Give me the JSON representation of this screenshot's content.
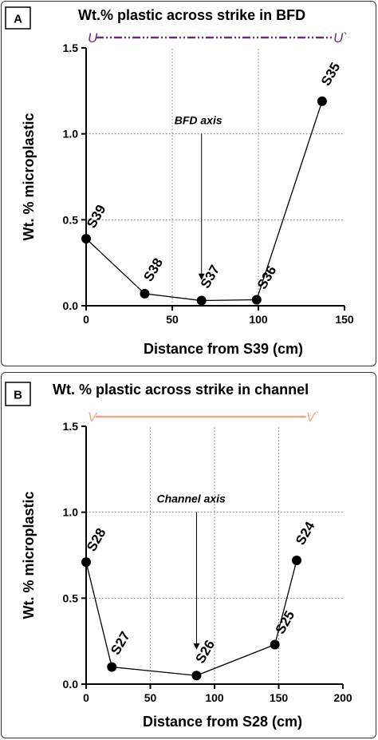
{
  "chart_data": [
    {
      "type": "line",
      "panel": "A",
      "title": "Wt.% plastic across strike in BFD",
      "xlabel": "Distance from S39 (cm)",
      "ylabel": "Wt. % microplastic",
      "xlim": [
        0,
        150
      ],
      "ylim": [
        0,
        1.5
      ],
      "xticks": [
        0,
        50,
        100,
        150
      ],
      "yticks": [
        0.0,
        0.5,
        1.0,
        1.5
      ],
      "ytick_labels": [
        "0.0",
        "0.5",
        "1.0",
        "1.5"
      ],
      "grid": "dotted vertical at 50 and 100, dotted horizontal at 0.5 and 1.0",
      "points": [
        {
          "label": "S39",
          "x": 0,
          "y": 0.39
        },
        {
          "label": "S38",
          "x": 34,
          "y": 0.07
        },
        {
          "label": "S37",
          "x": 67,
          "y": 0.03
        },
        {
          "label": "S36",
          "x": 99,
          "y": 0.035
        },
        {
          "label": "S35",
          "x": 137,
          "y": 1.19
        }
      ],
      "annotation": {
        "text": "BFD axis",
        "x": 67,
        "y_text": 1.0,
        "y_arrow_end": 0.15
      },
      "section_line": {
        "start_label": "U",
        "end_label": "U`",
        "color": "#6b2c7a",
        "x_start": 0,
        "x_end": 150,
        "y": 1.5
      }
    },
    {
      "type": "line",
      "panel": "B",
      "title": "Wt. % plastic across strike in channel",
      "xlabel": "Distance from S28 (cm)",
      "ylabel": "Wt. % microplastic",
      "xlim": [
        0,
        200
      ],
      "ylim": [
        0,
        1.5
      ],
      "xticks": [
        0,
        50,
        100,
        150,
        200
      ],
      "yticks": [
        0.0,
        0.5,
        1.0,
        1.5
      ],
      "ytick_labels": [
        "0.0",
        "0.5",
        "1.0",
        "1.5"
      ],
      "grid": "dotted vertical at 50, 100 and 150, dotted horizontal at 0.5 and 1.0",
      "points": [
        {
          "label": "S28",
          "x": 0,
          "y": 0.71
        },
        {
          "label": "S27",
          "x": 20,
          "y": 0.1
        },
        {
          "label": "S26",
          "x": 86,
          "y": 0.05
        },
        {
          "label": "S25",
          "x": 147,
          "y": 0.23
        },
        {
          "label": "S24",
          "x": 164,
          "y": 0.72
        }
      ],
      "annotation": {
        "text": "Channel axis",
        "x": 86,
        "y_text": 1.0,
        "y_arrow_end": 0.2
      },
      "section_line": {
        "start_label": "V",
        "end_label": "V`",
        "color": "#f0a890",
        "x_start": 0,
        "x_end": 180,
        "y": 1.5
      }
    }
  ]
}
